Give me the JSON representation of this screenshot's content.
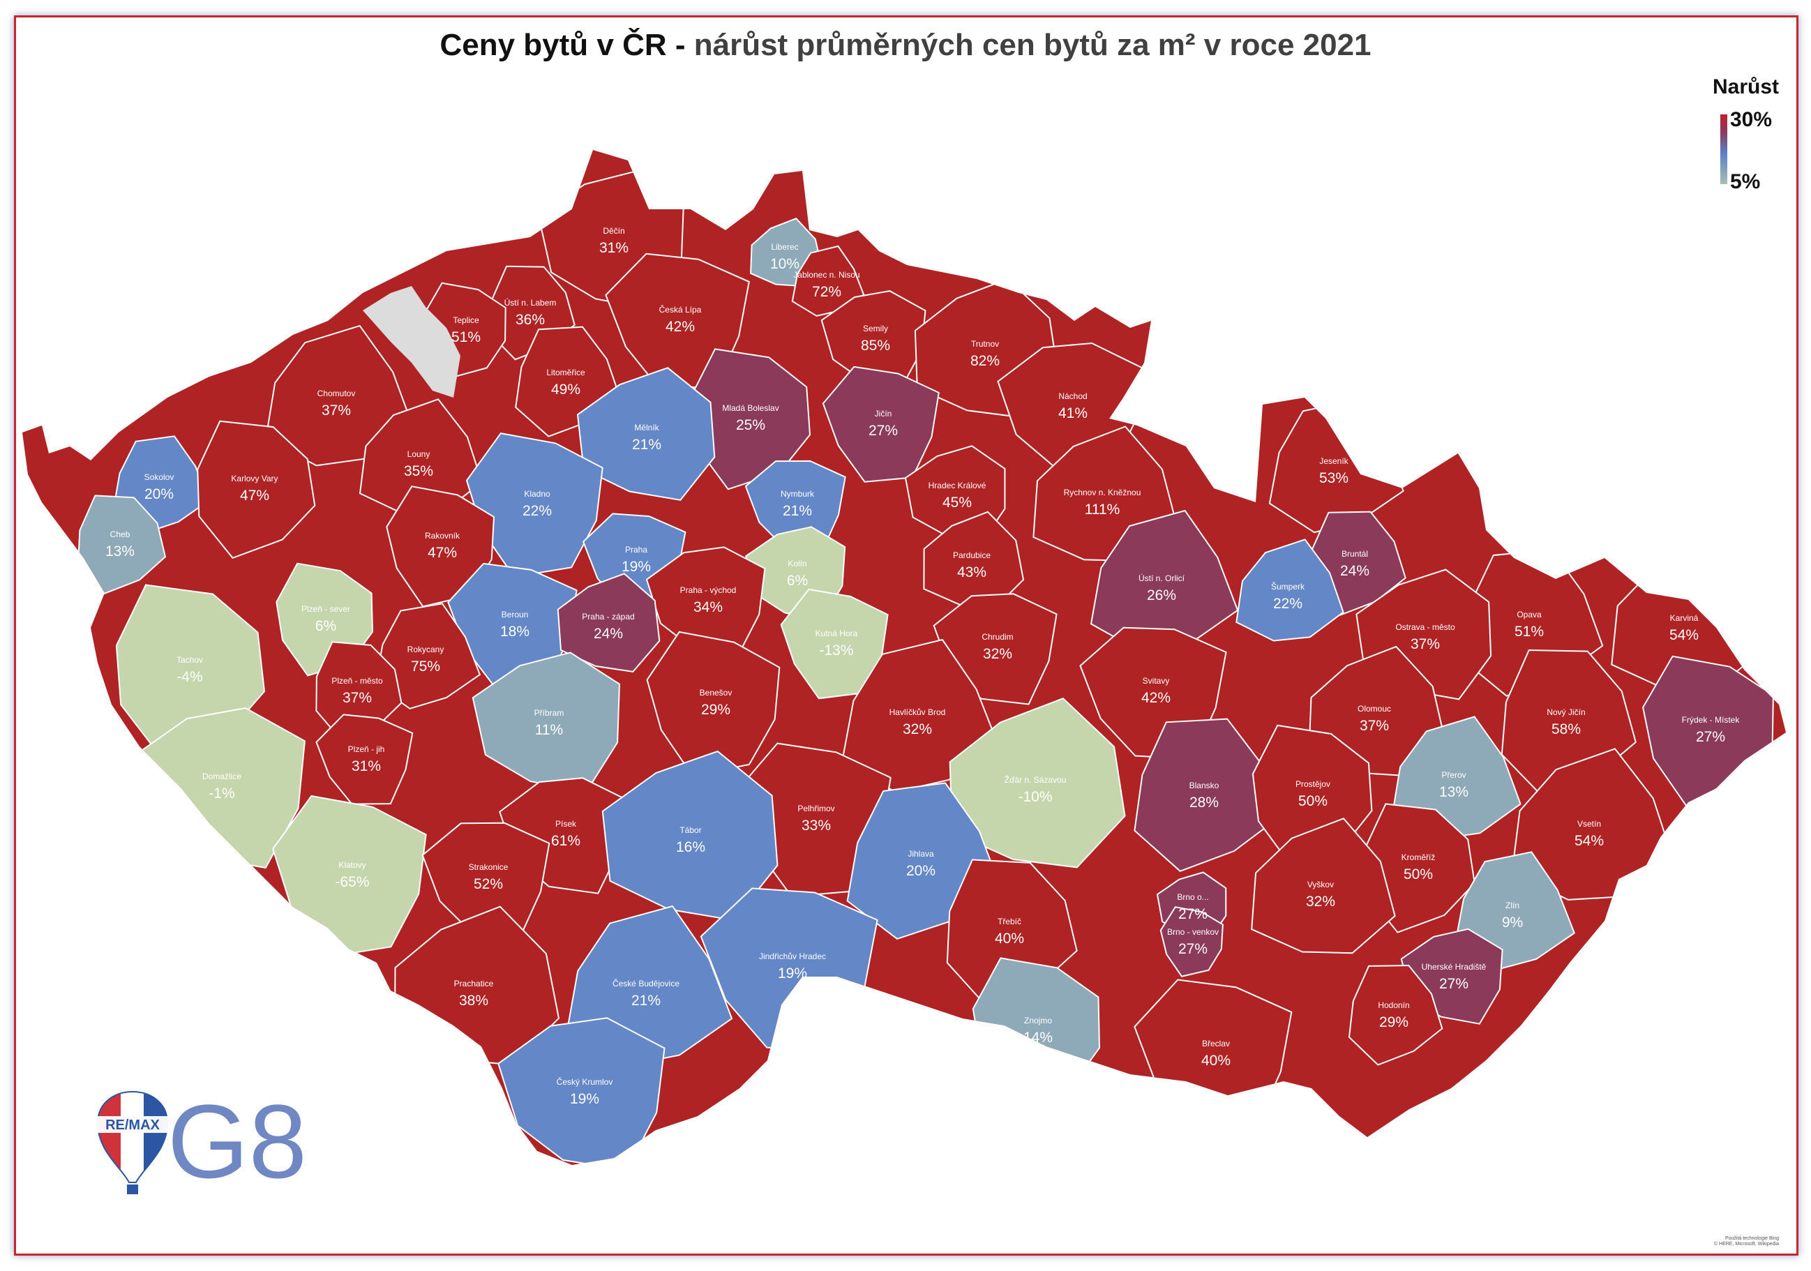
{
  "title": {
    "main": "Ceny bytů v ČR -",
    "sub": "nárůst průměrných cen bytů za m² v roce 2021"
  },
  "legend": {
    "title": "Narůst",
    "max_label": "30%",
    "min_label": "5%",
    "color_max": "#c0202d",
    "color_min": "#a6c0b0"
  },
  "colors": {
    "high": "#b02324",
    "purple": "#8b3a5a",
    "blue": "#6487c8",
    "steel": "#8eaab8",
    "green": "#c6d6ac",
    "missing": "#dcdcdc"
  },
  "districts": [
    {
      "name": "Děčín",
      "value": "31%"
    },
    {
      "name": "Liberec",
      "value": "10%"
    },
    {
      "name": "Jablonec n. Nisou",
      "value": "72%"
    },
    {
      "name": "Ústí n. Labem",
      "value": "36%"
    },
    {
      "name": "Teplice",
      "value": "51%"
    },
    {
      "name": "Česká Lípa",
      "value": "42%"
    },
    {
      "name": "Semily",
      "value": "85%"
    },
    {
      "name": "Trutnov",
      "value": "82%"
    },
    {
      "name": "Chomutov",
      "value": "37%"
    },
    {
      "name": "Litoměřice",
      "value": "49%"
    },
    {
      "name": "Mladá Boleslav",
      "value": "25%"
    },
    {
      "name": "Jičín",
      "value": "27%"
    },
    {
      "name": "Náchod",
      "value": "41%"
    },
    {
      "name": "Mělník",
      "value": "21%"
    },
    {
      "name": "Louny",
      "value": "35%"
    },
    {
      "name": "Sokolov",
      "value": "20%"
    },
    {
      "name": "Karlovy Vary",
      "value": "47%"
    },
    {
      "name": "Kladno",
      "value": "22%"
    },
    {
      "name": "Nymburk",
      "value": "21%"
    },
    {
      "name": "Hradec Králové",
      "value": "45%"
    },
    {
      "name": "Rychnov n. Kněžnou",
      "value": "111%"
    },
    {
      "name": "Jeseník",
      "value": "53%"
    },
    {
      "name": "Cheb",
      "value": "13%"
    },
    {
      "name": "Rakovník",
      "value": "47%"
    },
    {
      "name": "Praha",
      "value": "19%"
    },
    {
      "name": "Kolín",
      "value": "6%"
    },
    {
      "name": "Pardubice",
      "value": "43%"
    },
    {
      "name": "Ústí n. Orlicí",
      "value": "26%"
    },
    {
      "name": "Bruntál",
      "value": "24%"
    },
    {
      "name": "Plzeň - sever",
      "value": "6%"
    },
    {
      "name": "Beroun",
      "value": "18%"
    },
    {
      "name": "Praha - východ",
      "value": "34%"
    },
    {
      "name": "Praha - západ",
      "value": "24%"
    },
    {
      "name": "Šumperk",
      "value": "22%"
    },
    {
      "name": "Opava",
      "value": "51%"
    },
    {
      "name": "Tachov",
      "value": "-4%"
    },
    {
      "name": "Kutná Hora",
      "value": "-13%"
    },
    {
      "name": "Chrudim",
      "value": "32%"
    },
    {
      "name": "Ostrava - město",
      "value": "37%"
    },
    {
      "name": "Karviná",
      "value": "54%"
    },
    {
      "name": "Rokycany",
      "value": "75%"
    },
    {
      "name": "Plzeň - město",
      "value": "37%"
    },
    {
      "name": "Benešov",
      "value": "29%"
    },
    {
      "name": "Svitavy",
      "value": "42%"
    },
    {
      "name": "Příbram",
      "value": "11%"
    },
    {
      "name": "Olomouc",
      "value": "37%"
    },
    {
      "name": "Havlíčkův Brod",
      "value": "32%"
    },
    {
      "name": "Nový Jičín",
      "value": "58%"
    },
    {
      "name": "Frýdek - Místek",
      "value": "27%"
    },
    {
      "name": "Plzeň - jih",
      "value": "31%"
    },
    {
      "name": "Domažlice",
      "value": "-1%"
    },
    {
      "name": "Žďár n. Sázavou",
      "value": "-10%"
    },
    {
      "name": "Přerov",
      "value": "13%"
    },
    {
      "name": "Blansko",
      "value": "28%"
    },
    {
      "name": "Prostějov",
      "value": "50%"
    },
    {
      "name": "Pelhřimov",
      "value": "33%"
    },
    {
      "name": "Písek",
      "value": "61%"
    },
    {
      "name": "Tábor",
      "value": "16%"
    },
    {
      "name": "Vsetín",
      "value": "54%"
    },
    {
      "name": "Jihlava",
      "value": "20%"
    },
    {
      "name": "Kroměříž",
      "value": "50%"
    },
    {
      "name": "Klatovy",
      "value": "-65%"
    },
    {
      "name": "Strakonice",
      "value": "52%"
    },
    {
      "name": "Brno o...",
      "value": "27%"
    },
    {
      "name": "Vyškov",
      "value": "32%"
    },
    {
      "name": "Zlín",
      "value": "9%"
    },
    {
      "name": "Třebíč",
      "value": "40%"
    },
    {
      "name": "Brno - venkov",
      "value": "27%"
    },
    {
      "name": "Jindřichův Hradec",
      "value": "19%"
    },
    {
      "name": "Uherské Hradiště",
      "value": "27%"
    },
    {
      "name": "Prachatice",
      "value": "38%"
    },
    {
      "name": "České Budějovice",
      "value": "21%"
    },
    {
      "name": "Hodonín",
      "value": "29%"
    },
    {
      "name": "Znojmo",
      "value": "14%"
    },
    {
      "name": "Břeclav",
      "value": "40%"
    },
    {
      "name": "Český Krumlov",
      "value": "19%"
    }
  ],
  "logo": {
    "brand": "RE/MAX",
    "office": "G8"
  },
  "credit": {
    "line1": "Použitá technologie Bing",
    "line2": "© HERE, Microsoft, Wikipedia"
  }
}
